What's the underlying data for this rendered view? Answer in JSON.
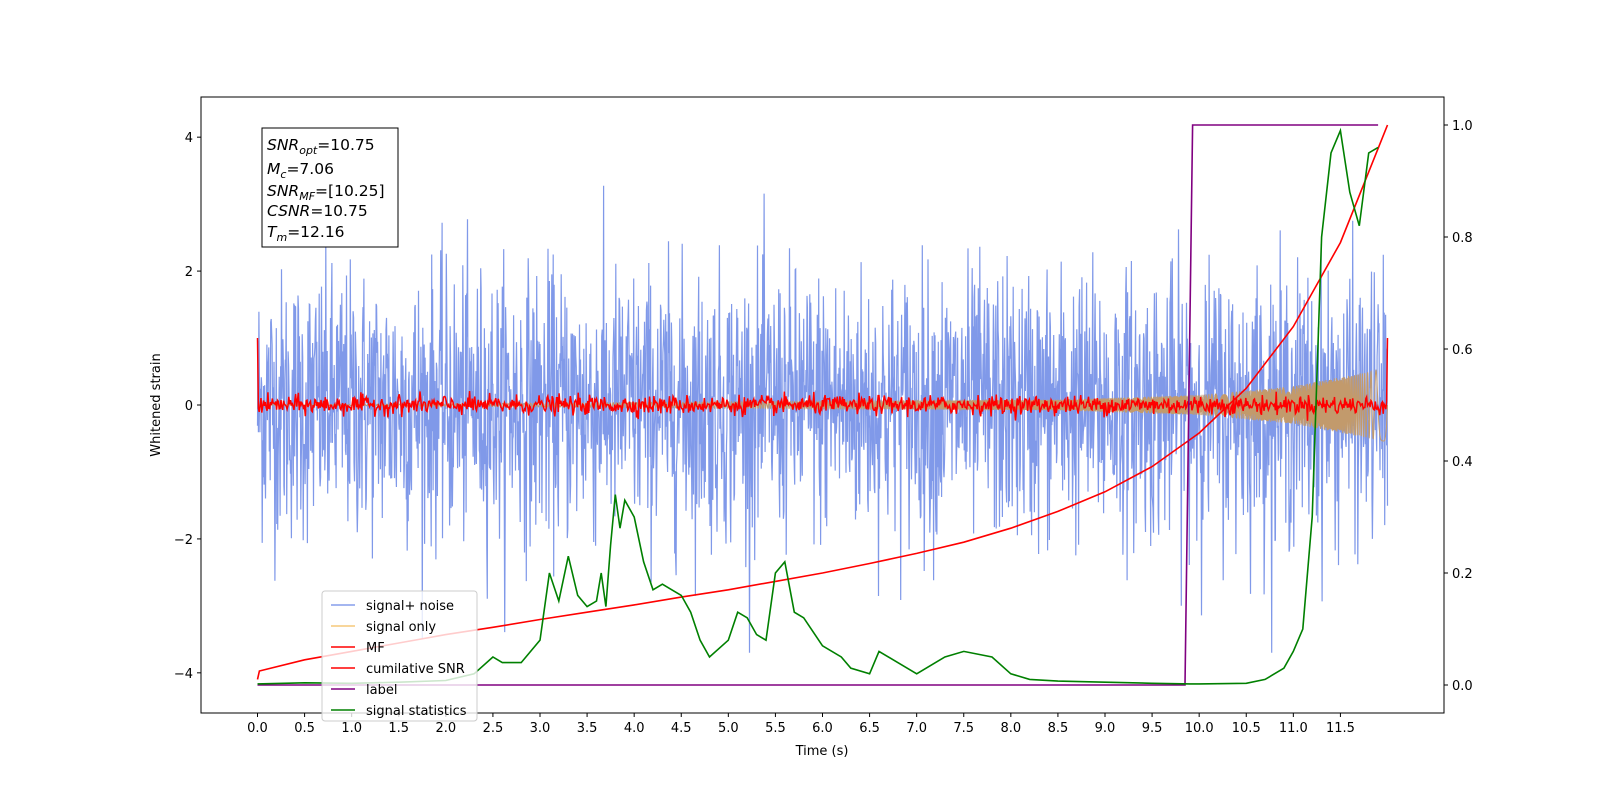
{
  "chart_data": {
    "type": "line",
    "xlabel": "Time (s)",
    "ylabel": "Whitened strain",
    "xlim": [
      -0.6,
      12.6
    ],
    "ylim": [
      -4.6,
      4.6
    ],
    "y2lim": [
      -0.05,
      1.05
    ],
    "x_ticks": [
      "0.0",
      "0.5",
      "1.0",
      "1.5",
      "2.0",
      "2.5",
      "3.0",
      "3.5",
      "4.0",
      "4.5",
      "5.0",
      "5.5",
      "6.0",
      "6.5",
      "7.0",
      "7.5",
      "8.0",
      "8.5",
      "9.0",
      "9.5",
      "10.0",
      "10.5",
      "11.0",
      "11.5"
    ],
    "y_ticks": [
      "4",
      "2",
      "0",
      "−2",
      "−4"
    ],
    "y2_ticks": [
      "1.0",
      "0.8",
      "0.6",
      "0.4",
      "0.2",
      "0.0"
    ],
    "legend_placement": "lower-left",
    "info_box": {
      "snr_opt": {
        "main": "SNR",
        "sub": "opt",
        "value": "=10.75"
      },
      "mc": {
        "main": "M",
        "sub": "c",
        "value": "=7.06"
      },
      "snr_mf": {
        "main": "SNR",
        "sub": "MF",
        "value": "=[10.25]"
      },
      "csnr": {
        "main": "CSNR",
        "value": "=10.75"
      },
      "tm": {
        "main": "T",
        "sub": "m",
        "value": "=12.16"
      }
    },
    "series": [
      {
        "name": "signal+ noise",
        "color": "#7994e8",
        "axis": "left",
        "kind": "noise",
        "amplitude_std": 1.0,
        "x_range": [
          0,
          12.0
        ]
      },
      {
        "name": "signal only",
        "color": "#f5c87a",
        "axis": "left",
        "kind": "chirp",
        "envelope": [
          [
            0.0,
            0.0
          ],
          [
            8.5,
            0.08
          ],
          [
            10.0,
            0.15
          ],
          [
            11.0,
            0.28
          ],
          [
            12.0,
            0.55
          ]
        ]
      },
      {
        "name": "MF",
        "color": "#ff0000",
        "axis": "left",
        "kind": "noise",
        "amplitude_std": 0.07,
        "start_value": 1.0,
        "end_value": 1.0
      },
      {
        "name": "cumilative SNR",
        "color": "#ff0000",
        "axis": "right",
        "x": [
          0.0,
          0.02,
          0.5,
          1.0,
          1.5,
          2.0,
          2.5,
          3.0,
          3.5,
          4.0,
          4.5,
          5.0,
          5.5,
          6.0,
          6.5,
          7.0,
          7.5,
          8.0,
          8.5,
          9.0,
          9.5,
          10.0,
          10.5,
          11.0,
          11.5,
          12.0
        ],
        "values": [
          0.01,
          0.025,
          0.045,
          0.06,
          0.075,
          0.09,
          0.103,
          0.117,
          0.13,
          0.143,
          0.157,
          0.17,
          0.185,
          0.2,
          0.217,
          0.235,
          0.255,
          0.28,
          0.31,
          0.345,
          0.39,
          0.45,
          0.53,
          0.64,
          0.79,
          1.0
        ]
      },
      {
        "name": "label",
        "color": "#800080",
        "axis": "right",
        "x": [
          0.0,
          9.85,
          9.93,
          11.9
        ],
        "values": [
          0.0,
          0.0,
          1.0,
          1.0
        ]
      },
      {
        "name": "signal statistics",
        "color": "#008000",
        "axis": "right",
        "x": [
          0.0,
          0.5,
          1.0,
          1.5,
          2.0,
          2.3,
          2.5,
          2.6,
          2.8,
          3.0,
          3.1,
          3.2,
          3.3,
          3.4,
          3.5,
          3.6,
          3.65,
          3.7,
          3.75,
          3.8,
          3.85,
          3.9,
          4.0,
          4.1,
          4.2,
          4.3,
          4.4,
          4.5,
          4.6,
          4.7,
          4.8,
          5.0,
          5.1,
          5.2,
          5.3,
          5.4,
          5.5,
          5.6,
          5.7,
          5.8,
          6.0,
          6.2,
          6.3,
          6.5,
          6.6,
          6.8,
          7.0,
          7.2,
          7.3,
          7.5,
          7.8,
          8.0,
          8.2,
          8.5,
          9.0,
          9.5,
          9.9,
          10.0,
          10.5,
          10.7,
          10.9,
          11.0,
          11.1,
          11.2,
          11.3,
          11.4,
          11.5,
          11.6,
          11.7,
          11.8,
          11.9
        ],
        "values": [
          0.002,
          0.004,
          0.003,
          0.005,
          0.008,
          0.02,
          0.05,
          0.04,
          0.04,
          0.08,
          0.2,
          0.15,
          0.23,
          0.16,
          0.14,
          0.15,
          0.2,
          0.14,
          0.25,
          0.34,
          0.28,
          0.33,
          0.3,
          0.22,
          0.17,
          0.18,
          0.17,
          0.16,
          0.13,
          0.08,
          0.05,
          0.08,
          0.13,
          0.12,
          0.09,
          0.08,
          0.2,
          0.22,
          0.13,
          0.12,
          0.07,
          0.05,
          0.03,
          0.02,
          0.06,
          0.04,
          0.02,
          0.04,
          0.05,
          0.06,
          0.05,
          0.02,
          0.01,
          0.007,
          0.005,
          0.003,
          0.002,
          0.002,
          0.003,
          0.01,
          0.03,
          0.06,
          0.1,
          0.3,
          0.8,
          0.95,
          0.99,
          0.88,
          0.82,
          0.95,
          0.96
        ]
      }
    ]
  }
}
